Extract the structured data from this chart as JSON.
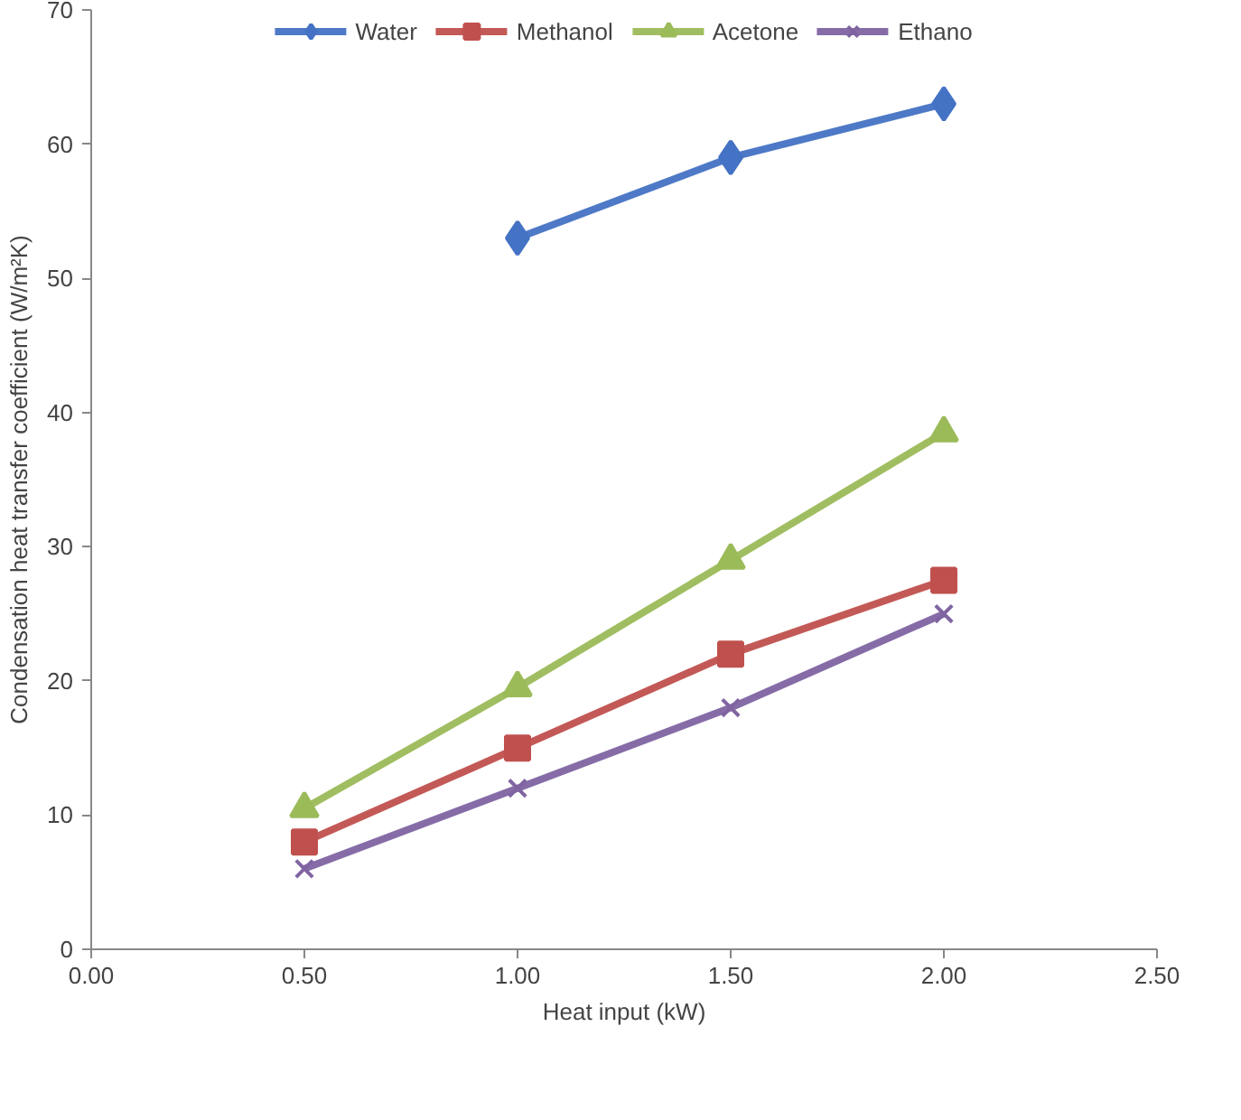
{
  "chart_data": {
    "type": "line",
    "xlabel": "Heat input (kW)",
    "ylabel": "Condensation heat transfer coefficient (W/m²K)",
    "xlim": [
      0,
      2.5
    ],
    "xticks": [
      {
        "value": 0,
        "label": "0.00"
      },
      {
        "value": 0.5,
        "label": "0.50"
      },
      {
        "value": 1,
        "label": "1.00"
      },
      {
        "value": 1.5,
        "label": "1.50"
      },
      {
        "value": 2,
        "label": "2.00"
      },
      {
        "value": 2.5,
        "label": "2.50"
      }
    ],
    "ylim": [
      0,
      70
    ],
    "yticks": [
      0,
      10,
      20,
      30,
      40,
      50,
      60,
      70
    ],
    "grid": false,
    "legend": "top",
    "line_style": "solid",
    "series": [
      {
        "name": "Water",
        "color": "#4472c4",
        "marker": "diamond",
        "x": [
          1,
          1.5,
          2
        ],
        "values": [
          53,
          59,
          63
        ]
      },
      {
        "name": "Methanol",
        "color": "#c0504d",
        "marker": "square",
        "x": [
          0.5,
          1,
          1.5,
          2
        ],
        "values": [
          8,
          15,
          22,
          27.5
        ]
      },
      {
        "name": "Acetone",
        "color": "#9bbb59",
        "marker": "triangle",
        "x": [
          0.5,
          1,
          1.5,
          2
        ],
        "values": [
          10.5,
          19.5,
          29,
          38.5
        ]
      },
      {
        "name": "Ethano",
        "color": "#8064a2",
        "marker": "x",
        "x": [
          0.5,
          1,
          1.5,
          2
        ],
        "values": [
          6,
          12,
          18,
          25
        ]
      }
    ]
  }
}
